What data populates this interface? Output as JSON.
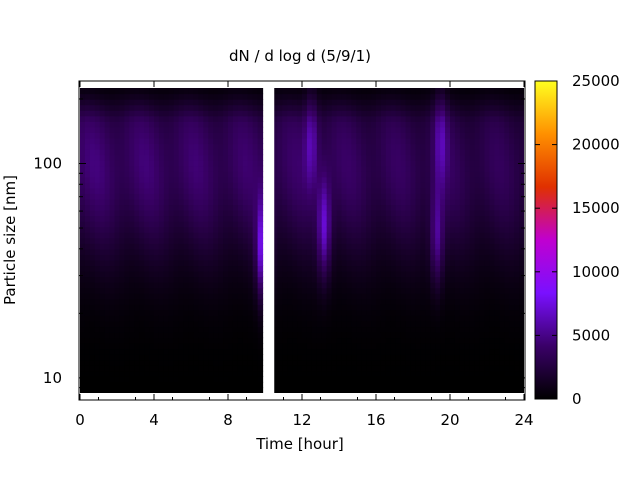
{
  "chart_data": {
    "type": "heatmap",
    "title": "dN / d log d (5/9/1)",
    "xlabel": "Time [hour]",
    "ylabel": "Particle size [nm]",
    "xlim": [
      0,
      24
    ],
    "ylim_nm": [
      8.5,
      225
    ],
    "y_scale": "log",
    "x_ticks": [
      0,
      4,
      8,
      12,
      16,
      20,
      24
    ],
    "y_ticks": [
      10,
      100
    ],
    "colorbar": {
      "min": 0,
      "max": 25000,
      "ticks": [
        0,
        5000,
        10000,
        15000,
        20000,
        25000
      ],
      "colormap": [
        "#000000",
        "#3a0068",
        "#7a10ff",
        "#c000d0",
        "#e03000",
        "#ff9000",
        "#ffff20"
      ]
    },
    "data_gaps_hours": [
      [
        10.0,
        10.5
      ]
    ],
    "background_peak": {
      "diameter_nm": 100,
      "value": 4800
    },
    "bursts": [
      {
        "time_hour": 9.9,
        "diameter_nm": 40,
        "value": 11500
      },
      {
        "time_hour": 13.2,
        "diameter_nm": 50,
        "value": 8500
      },
      {
        "time_hour": 19.3,
        "diameter_nm": 45,
        "value": 6500
      },
      {
        "time_hour": 12.5,
        "diameter_nm": 130,
        "value": 5500
      },
      {
        "time_hour": 19.5,
        "diameter_nm": 130,
        "value": 5000
      }
    ]
  }
}
